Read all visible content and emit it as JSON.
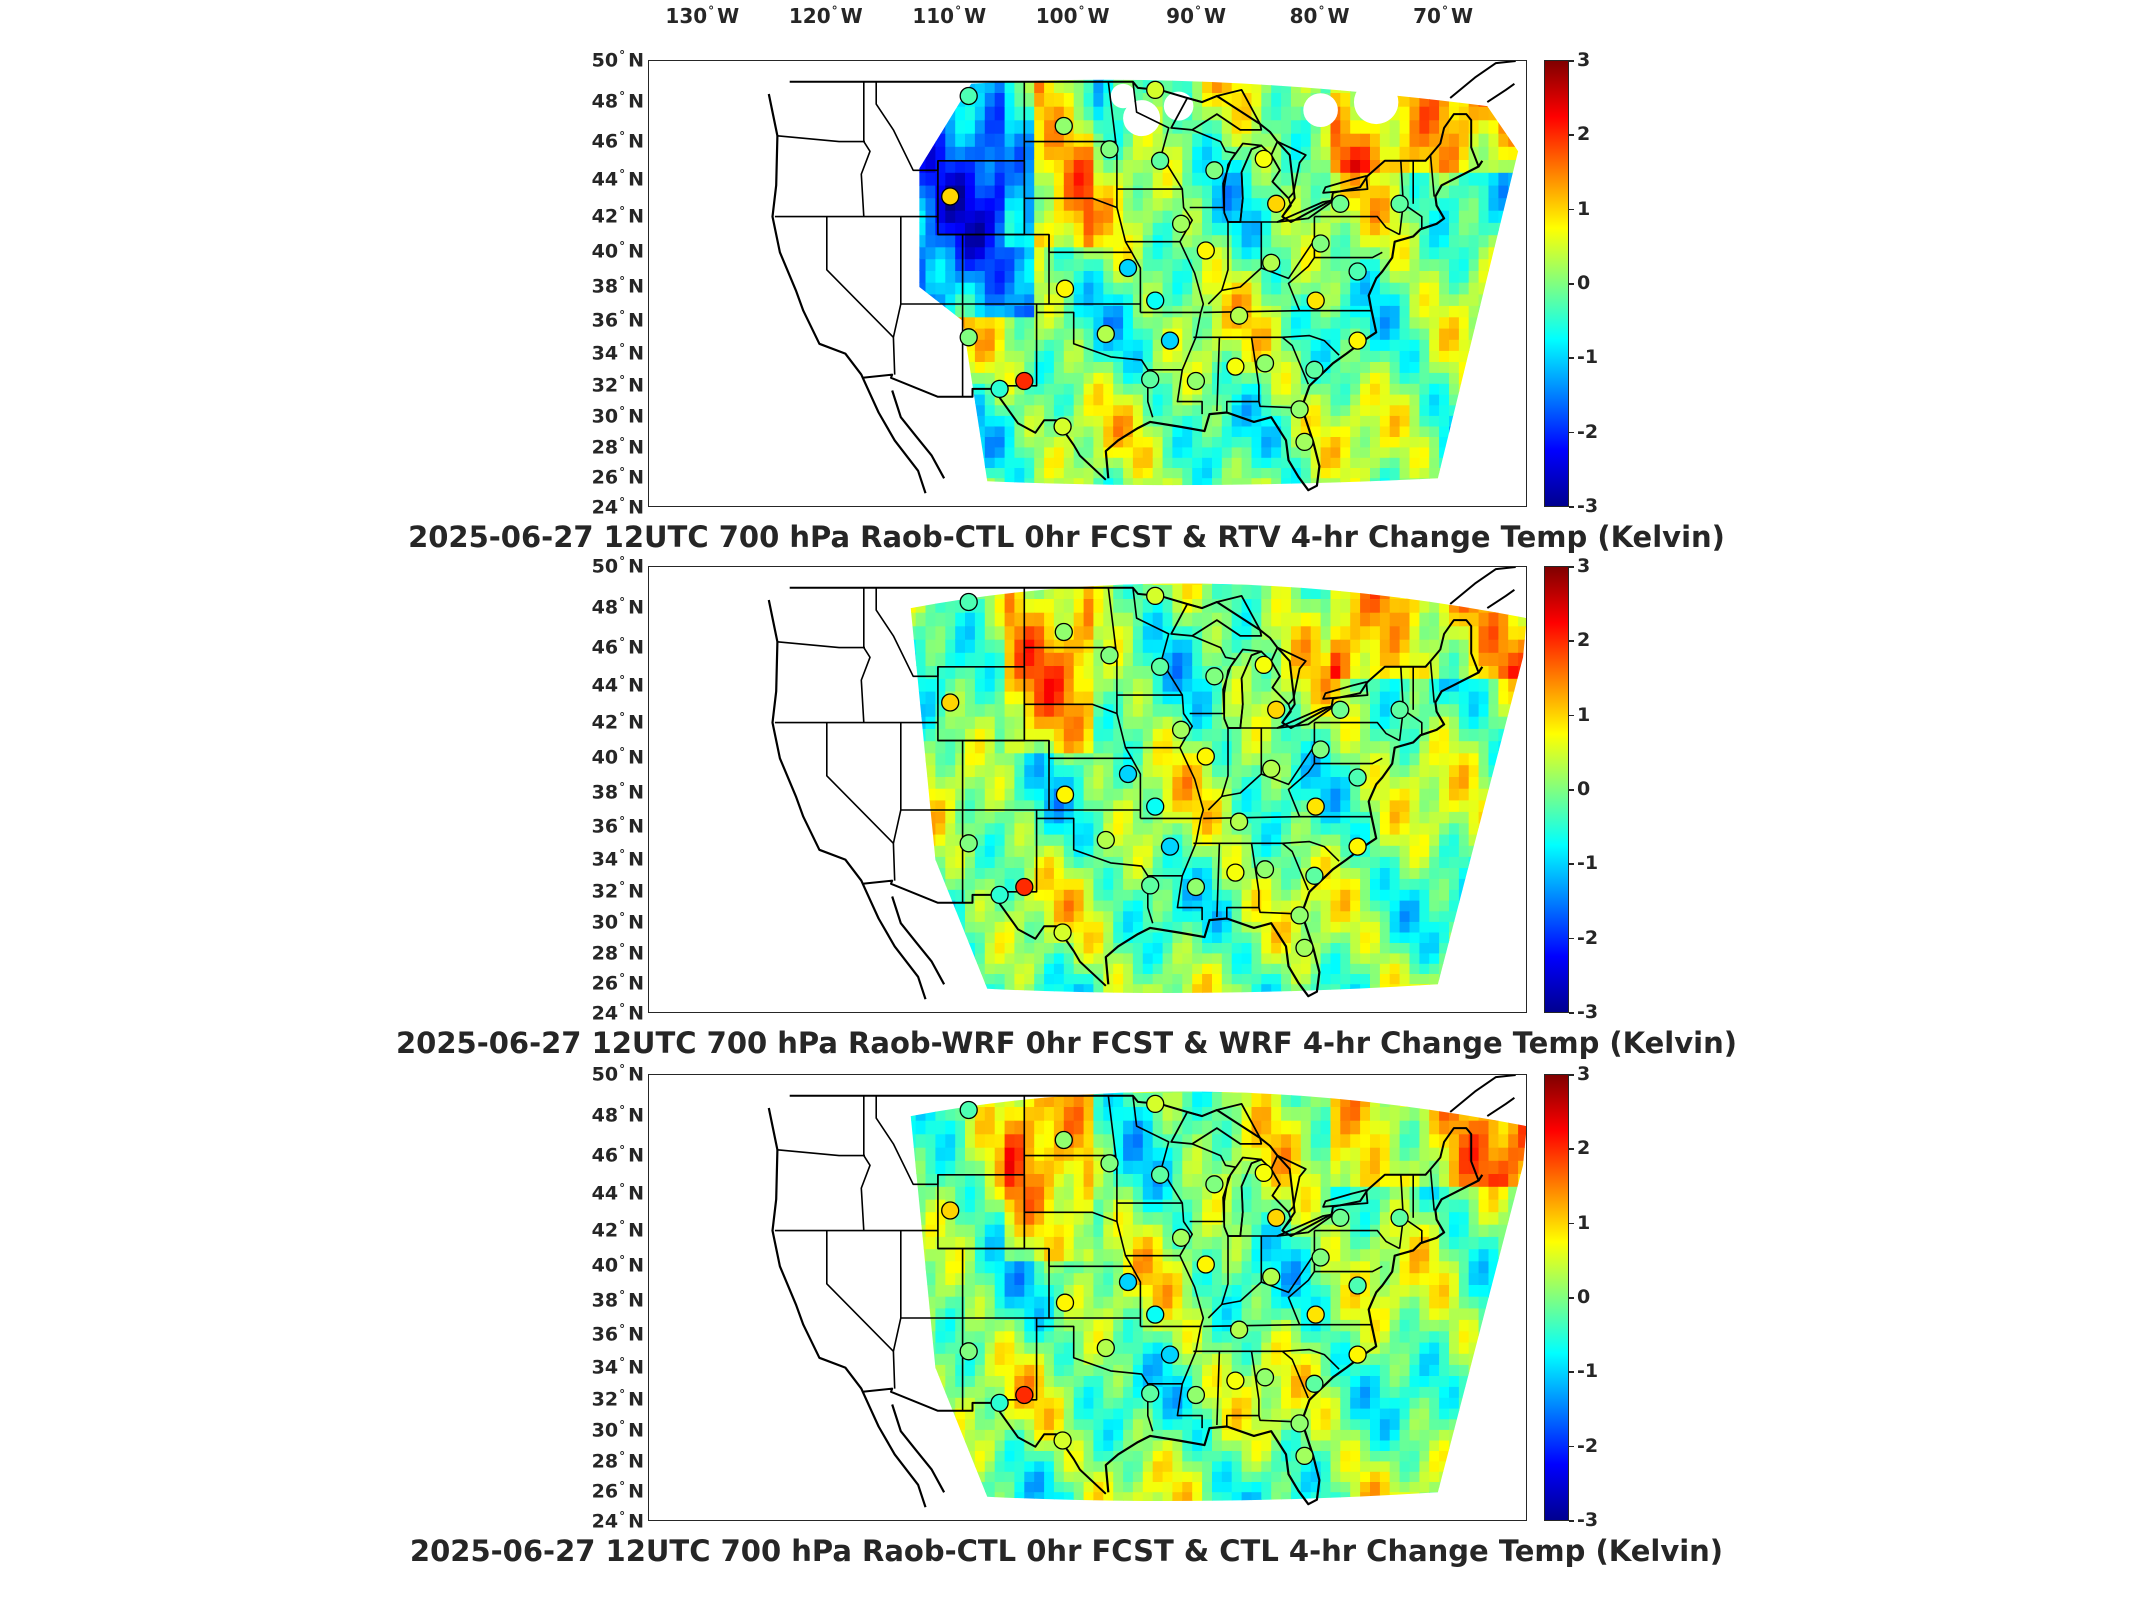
{
  "longitude_labels": [
    {
      "deg": "130",
      "hem": "W"
    },
    {
      "deg": "120",
      "hem": "W"
    },
    {
      "deg": "110",
      "hem": "W"
    },
    {
      "deg": "100",
      "hem": "W"
    },
    {
      "deg": "90",
      "hem": "W"
    },
    {
      "deg": "80",
      "hem": "W"
    },
    {
      "deg": "70",
      "hem": "W"
    }
  ],
  "latitude_labels": [
    {
      "deg": "50",
      "hem": "N"
    },
    {
      "deg": "48",
      "hem": "N"
    },
    {
      "deg": "46",
      "hem": "N"
    },
    {
      "deg": "44",
      "hem": "N"
    },
    {
      "deg": "42",
      "hem": "N"
    },
    {
      "deg": "40",
      "hem": "N"
    },
    {
      "deg": "38",
      "hem": "N"
    },
    {
      "deg": "36",
      "hem": "N"
    },
    {
      "deg": "34",
      "hem": "N"
    },
    {
      "deg": "32",
      "hem": "N"
    },
    {
      "deg": "30",
      "hem": "N"
    },
    {
      "deg": "28",
      "hem": "N"
    },
    {
      "deg": "26",
      "hem": "N"
    },
    {
      "deg": "24",
      "hem": "N"
    }
  ],
  "colorbar": {
    "ticks": [
      "3",
      "2",
      "1",
      "0",
      "-1",
      "-2",
      "-3"
    ],
    "min": -3,
    "max": 3,
    "colormap": "jet"
  },
  "panels": [
    {
      "title": "2025-06-27 12UTC 700 hPa Raob-CTL 0hr FCST & RTV 4-hr Change Temp (Kelvin)",
      "field": "RTV 4-hr change",
      "coverage": "partial-west"
    },
    {
      "title": "2025-06-27 12UTC 700 hPa Raob-WRF 0hr FCST & WRF 4-hr Change Temp (Kelvin)",
      "field": "WRF 4-hr change",
      "coverage": "full"
    },
    {
      "title": "2025-06-27 12UTC 700 hPa Raob-CTL 0hr FCST & CTL 4-hr Change Temp (Kelvin)",
      "field": "CTL 4-hr change",
      "coverage": "full"
    }
  ],
  "raob_stations": [
    {
      "lon": -108.5,
      "lat": 48.3,
      "value": -0.3
    },
    {
      "lon": -100.8,
      "lat": 46.8,
      "value": 0.1
    },
    {
      "lon": -97.1,
      "lat": 45.6,
      "value": 0.0
    },
    {
      "lon": -93.4,
      "lat": 48.6,
      "value": 0.5
    },
    {
      "lon": -93.0,
      "lat": 45.0,
      "value": -0.2
    },
    {
      "lon": -110.0,
      "lat": 43.1,
      "value": 1.0
    },
    {
      "lon": -88.6,
      "lat": 44.5,
      "value": 0.0
    },
    {
      "lon": -84.6,
      "lat": 45.1,
      "value": 0.7
    },
    {
      "lon": -83.6,
      "lat": 42.7,
      "value": 1.0
    },
    {
      "lon": -91.3,
      "lat": 41.6,
      "value": 0.2
    },
    {
      "lon": -89.3,
      "lat": 40.1,
      "value": 0.8
    },
    {
      "lon": -84.0,
      "lat": 39.4,
      "value": 0.3
    },
    {
      "lon": -80.0,
      "lat": 40.5,
      "value": 0.0
    },
    {
      "lon": -78.4,
      "lat": 42.7,
      "value": -0.1
    },
    {
      "lon": -73.6,
      "lat": 42.7,
      "value": -0.2
    },
    {
      "lon": -95.6,
      "lat": 39.1,
      "value": -1.0
    },
    {
      "lon": -100.7,
      "lat": 37.9,
      "value": 0.8
    },
    {
      "lon": -93.4,
      "lat": 37.2,
      "value": -0.7
    },
    {
      "lon": -86.6,
      "lat": 36.3,
      "value": 0.3
    },
    {
      "lon": -80.4,
      "lat": 37.2,
      "value": 0.9
    },
    {
      "lon": -77.0,
      "lat": 38.9,
      "value": -0.3
    },
    {
      "lon": -108.5,
      "lat": 35.0,
      "value": 0.0
    },
    {
      "lon": -97.4,
      "lat": 35.2,
      "value": 0.3
    },
    {
      "lon": -92.2,
      "lat": 34.8,
      "value": -1.0
    },
    {
      "lon": -104.0,
      "lat": 32.3,
      "value": 2.0
    },
    {
      "lon": -106.0,
      "lat": 31.8,
      "value": -0.5
    },
    {
      "lon": -93.8,
      "lat": 32.4,
      "value": -0.2
    },
    {
      "lon": -90.1,
      "lat": 32.3,
      "value": 0.1
    },
    {
      "lon": -86.9,
      "lat": 33.2,
      "value": 0.7
    },
    {
      "lon": -84.5,
      "lat": 33.4,
      "value": 0.1
    },
    {
      "lon": -80.5,
      "lat": 33.0,
      "value": -0.2
    },
    {
      "lon": -77.0,
      "lat": 34.8,
      "value": 0.8
    },
    {
      "lon": -100.9,
      "lat": 29.4,
      "value": 0.5
    },
    {
      "lon": -81.7,
      "lat": 30.5,
      "value": 0.1
    },
    {
      "lon": -81.3,
      "lat": 28.4,
      "value": 0.2
    }
  ]
}
